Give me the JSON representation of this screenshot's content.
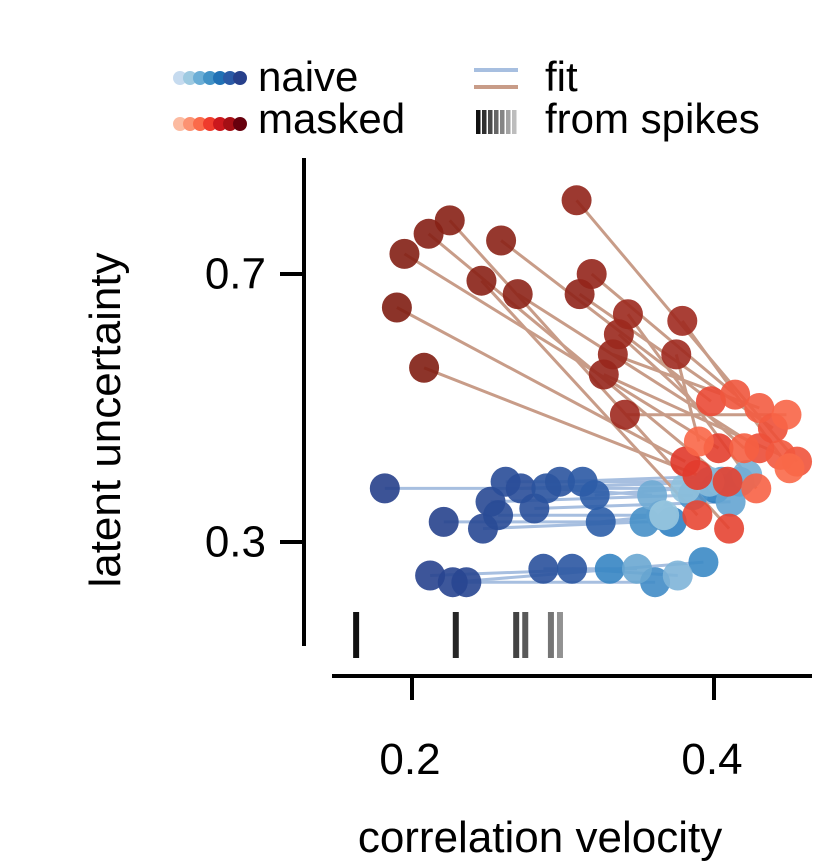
{
  "chart_data": {
    "type": "scatter",
    "xlabel": "correlation velocity",
    "ylabel": "latent uncertainty",
    "xlim": [
      0.13,
      0.46
    ],
    "ylim": [
      0.15,
      0.85
    ],
    "xticks": [
      0.2,
      0.4
    ],
    "yticks": [
      0.3,
      0.7
    ],
    "xtick_labels": [
      "0.2",
      "0.4"
    ],
    "ytick_labels": [
      "0.3",
      "0.7"
    ],
    "legend": {
      "placement": "top",
      "entries": [
        {
          "label": "naive",
          "style": "dot-gradient",
          "colors": [
            "#c6dbef",
            "#9ecae1",
            "#6baed6",
            "#4292c6",
            "#2171b5",
            "#2b5aa6",
            "#27408b"
          ]
        },
        {
          "label": "masked",
          "style": "dot-gradient",
          "colors": [
            "#fcbba1",
            "#fc9272",
            "#fb6a4a",
            "#ef3b2c",
            "#cb181d",
            "#a50f15",
            "#67000d"
          ]
        },
        {
          "label": "fit",
          "style": "line-pair",
          "colors": [
            "#a7bfe0",
            "#c89c88"
          ]
        },
        {
          "label": "from spikes",
          "style": "bar-gradient",
          "colors": [
            "#111111",
            "#2e2e2e",
            "#4a4a4a",
            "#666666",
            "#858585",
            "#a3a3a3",
            "#bdbdbd"
          ]
        }
      ]
    },
    "colors": {
      "naive_light": "#9ecae1",
      "naive_dark": "#27408b",
      "masked_light": "#fb6a4a",
      "masked_dark": "#7f1d12",
      "fit_naive": "#a7bfe0",
      "fit_masked": "#c89c88"
    },
    "naive_pairs": [
      {
        "start": [
          0.182,
          0.38
        ],
        "end": [
          0.401,
          0.38
        ],
        "s": 0.0
      },
      {
        "start": [
          0.221,
          0.33
        ],
        "end": [
          0.372,
          0.33
        ],
        "s": 0.05
      },
      {
        "start": [
          0.212,
          0.25
        ],
        "end": [
          0.331,
          0.26
        ],
        "s": 0.1
      },
      {
        "start": [
          0.227,
          0.24
        ],
        "end": [
          0.393,
          0.27
        ],
        "s": 0.15
      },
      {
        "start": [
          0.236,
          0.24
        ],
        "end": [
          0.361,
          0.24
        ],
        "s": 0.2
      },
      {
        "start": [
          0.247,
          0.32
        ],
        "end": [
          0.354,
          0.33
        ],
        "s": 0.25
      },
      {
        "start": [
          0.252,
          0.36
        ],
        "end": [
          0.386,
          0.37
        ],
        "s": 0.3
      },
      {
        "start": [
          0.257,
          0.34
        ],
        "end": [
          0.365,
          0.34
        ],
        "s": 0.35
      },
      {
        "start": [
          0.262,
          0.39
        ],
        "end": [
          0.417,
          0.39
        ],
        "s": 0.4
      },
      {
        "start": [
          0.272,
          0.38
        ],
        "end": [
          0.405,
          0.39
        ],
        "s": 0.45
      },
      {
        "start": [
          0.281,
          0.35
        ],
        "end": [
          0.411,
          0.36
        ],
        "s": 0.5
      },
      {
        "start": [
          0.287,
          0.26
        ],
        "end": [
          0.349,
          0.26
        ],
        "s": 0.55
      },
      {
        "start": [
          0.289,
          0.38
        ],
        "end": [
          0.359,
          0.37
        ],
        "s": 0.6
      },
      {
        "start": [
          0.298,
          0.39
        ],
        "end": [
          0.422,
          0.4
        ],
        "s": 0.65
      },
      {
        "start": [
          0.306,
          0.26
        ],
        "end": [
          0.376,
          0.25
        ],
        "s": 0.72
      },
      {
        "start": [
          0.313,
          0.39
        ],
        "end": [
          0.397,
          0.39
        ],
        "s": 0.8
      },
      {
        "start": [
          0.321,
          0.37
        ],
        "end": [
          0.381,
          0.38
        ],
        "s": 0.88
      },
      {
        "start": [
          0.325,
          0.33
        ],
        "end": [
          0.367,
          0.34
        ],
        "s": 0.95
      }
    ],
    "masked_pairs": [
      {
        "start": [
          0.19,
          0.65
        ],
        "end": [
          0.381,
          0.42
        ],
        "s": 0.0
      },
      {
        "start": [
          0.208,
          0.56
        ],
        "end": [
          0.389,
          0.4
        ],
        "s": 0.06
      },
      {
        "start": [
          0.195,
          0.73
        ],
        "end": [
          0.403,
          0.44
        ],
        "s": 0.12
      },
      {
        "start": [
          0.211,
          0.76
        ],
        "end": [
          0.409,
          0.39
        ],
        "s": 0.18
      },
      {
        "start": [
          0.225,
          0.78
        ],
        "end": [
          0.41,
          0.32
        ],
        "s": 0.24
      },
      {
        "start": [
          0.246,
          0.69
        ],
        "end": [
          0.389,
          0.34
        ],
        "s": 0.3
      },
      {
        "start": [
          0.259,
          0.75
        ],
        "end": [
          0.398,
          0.51
        ],
        "s": 0.36
      },
      {
        "start": [
          0.27,
          0.67
        ],
        "end": [
          0.43,
          0.44
        ],
        "s": 0.42
      },
      {
        "start": [
          0.311,
          0.67
        ],
        "end": [
          0.439,
          0.47
        ],
        "s": 0.48
      },
      {
        "start": [
          0.309,
          0.81
        ],
        "end": [
          0.455,
          0.42
        ],
        "s": 0.54
      },
      {
        "start": [
          0.319,
          0.7
        ],
        "end": [
          0.414,
          0.52
        ],
        "s": 0.6
      },
      {
        "start": [
          0.327,
          0.55
        ],
        "end": [
          0.444,
          0.43
        ],
        "s": 0.66
      },
      {
        "start": [
          0.333,
          0.58
        ],
        "end": [
          0.43,
          0.5
        ],
        "s": 0.72
      },
      {
        "start": [
          0.337,
          0.61
        ],
        "end": [
          0.42,
          0.44
        ],
        "s": 0.78
      },
      {
        "start": [
          0.343,
          0.64
        ],
        "end": [
          0.428,
          0.38
        ],
        "s": 0.84
      },
      {
        "start": [
          0.341,
          0.49
        ],
        "end": [
          0.448,
          0.49
        ],
        "s": 0.9
      },
      {
        "start": [
          0.375,
          0.58
        ],
        "end": [
          0.39,
          0.45
        ],
        "s": 0.94
      },
      {
        "start": [
          0.379,
          0.63
        ],
        "end": [
          0.45,
          0.41
        ],
        "s": 0.97
      }
    ],
    "spike_markers": [
      {
        "x": 0.163,
        "s": 0.0
      },
      {
        "x": 0.229,
        "s": 0.15
      },
      {
        "x": 0.269,
        "s": 0.35
      },
      {
        "x": 0.275,
        "s": 0.5
      },
      {
        "x": 0.292,
        "s": 0.7
      },
      {
        "x": 0.298,
        "s": 0.9
      }
    ]
  }
}
